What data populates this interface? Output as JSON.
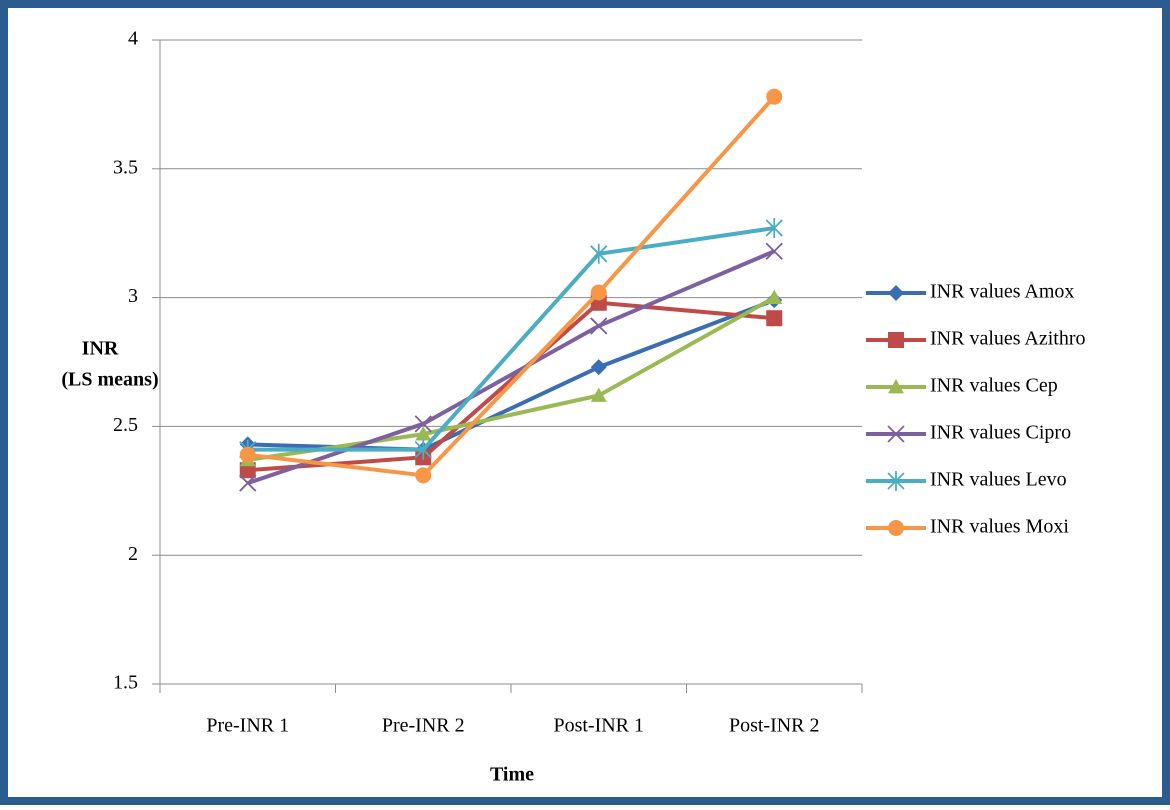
{
  "chart_data": {
    "type": "line",
    "xlabel": "Time",
    "ylabel": [
      "INR",
      "(LS means)"
    ],
    "categories": [
      "Pre-INR 1",
      "Pre-INR 2",
      "Post-INR 1",
      "Post-INR 2"
    ],
    "ylim": [
      1.5,
      4
    ],
    "yticks": [
      1.5,
      2,
      2.5,
      3,
      3.5,
      4
    ],
    "grid": true,
    "legend": "right",
    "series": [
      {
        "name": "INR values Amox",
        "color": "#3b6db3",
        "marker": "diamond",
        "values": [
          2.43,
          2.41,
          2.73,
          2.99
        ]
      },
      {
        "name": "INR values Azithro",
        "color": "#be4b48",
        "marker": "square",
        "values": [
          2.33,
          2.38,
          2.98,
          2.92
        ]
      },
      {
        "name": "INR values Cep",
        "color": "#98b954",
        "marker": "triangle",
        "values": [
          2.37,
          2.47,
          2.62,
          3.0
        ]
      },
      {
        "name": "INR values Cipro",
        "color": "#7d60a0",
        "marker": "x",
        "values": [
          2.28,
          2.51,
          2.89,
          3.18
        ]
      },
      {
        "name": "INR values Levo",
        "color": "#4bacc6",
        "marker": "star",
        "values": [
          2.41,
          2.41,
          3.17,
          3.27
        ]
      },
      {
        "name": "INR values Moxi",
        "color": "#f79646",
        "marker": "circle",
        "values": [
          2.39,
          2.31,
          3.02,
          3.78
        ]
      }
    ]
  }
}
